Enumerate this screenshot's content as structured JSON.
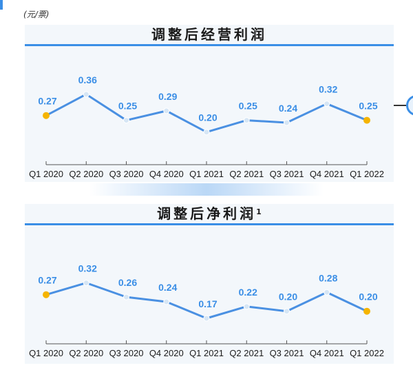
{
  "unit_note": "(元/票)",
  "colors": {
    "line": "#4a90e2",
    "marker": "#d6e6f5",
    "endpoint": "#f5b400",
    "accent": "#3a8ee6"
  },
  "chart_data": [
    {
      "type": "line",
      "title": "调整后经营利润",
      "title_superscript": "",
      "categories": [
        "Q1 2020",
        "Q2 2020",
        "Q3 2020",
        "Q4 2020",
        "Q1 2021",
        "Q2 2021",
        "Q3 2021",
        "Q4 2021",
        "Q1 2022"
      ],
      "series": [
        {
          "values": [
            0.27,
            0.36,
            0.25,
            0.29,
            0.2,
            0.25,
            0.24,
            0.32,
            0.25
          ]
        }
      ],
      "labels": [
        "0.27",
        "0.36",
        "0.25",
        "0.29",
        "0.20",
        "0.25",
        "0.24",
        "0.32",
        "0.25"
      ],
      "grid": false,
      "ylim": [
        0.1,
        0.45
      ]
    },
    {
      "type": "line",
      "title": "调整后净利润",
      "title_superscript": "1",
      "categories": [
        "Q1 2020",
        "Q2 2020",
        "Q3 2020",
        "Q4 2020",
        "Q1 2021",
        "Q2 2021",
        "Q3 2021",
        "Q4 2021",
        "Q1 2022"
      ],
      "series": [
        {
          "values": [
            0.27,
            0.32,
            0.26,
            0.24,
            0.17,
            0.22,
            0.2,
            0.28,
            0.2
          ]
        }
      ],
      "labels": [
        "0.27",
        "0.32",
        "0.26",
        "0.24",
        "0.17",
        "0.22",
        "0.20",
        "0.28",
        "0.20"
      ],
      "grid": false,
      "ylim": [
        0.1,
        0.45
      ]
    }
  ]
}
